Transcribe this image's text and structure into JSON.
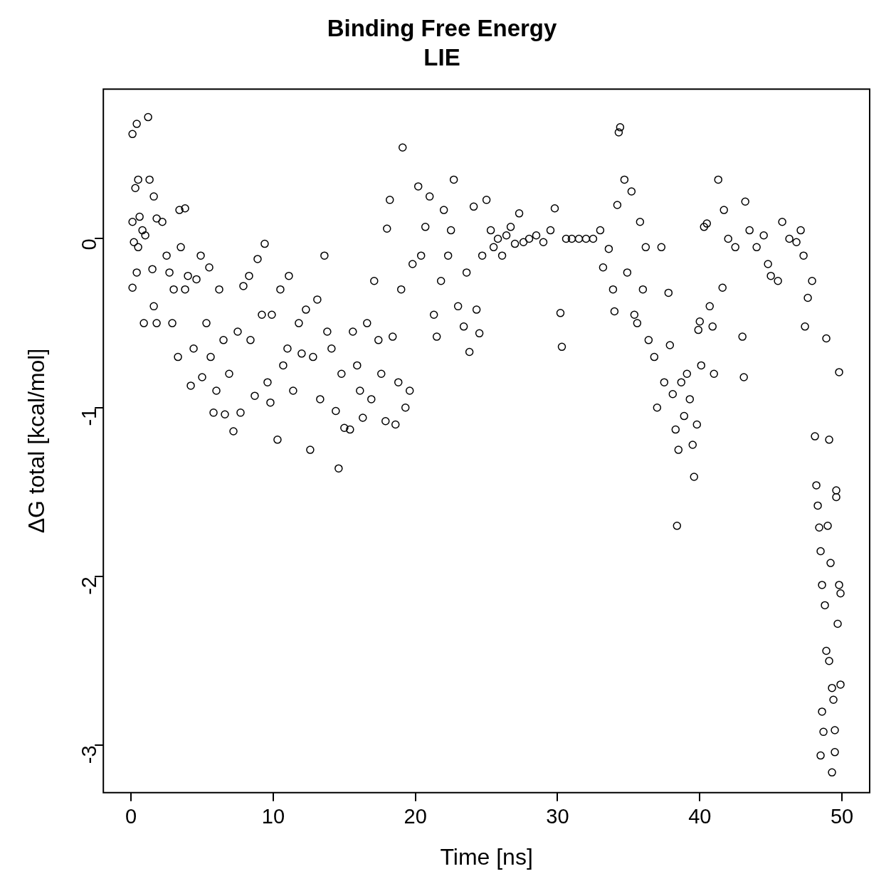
{
  "chart_data": {
    "type": "scatter",
    "title": "Binding Free Energy",
    "subtitle": "LIE",
    "xlabel": "Time [ns]",
    "ylabel": "ΔG total [kcal/mol]",
    "marker": "circle",
    "xlim": [
      -1.95,
      51.95
    ],
    "ylim": [
      -3.28,
      0.886
    ],
    "xticks": [
      0,
      10,
      20,
      30,
      40,
      50
    ],
    "yticks": [
      -3,
      -2,
      -1,
      0
    ],
    "x": [
      0.1,
      0.4,
      1.2,
      0.3,
      0.5,
      1.3,
      0.6,
      0.1,
      0.8,
      1.0,
      0.2,
      0.5,
      0.4,
      0.1,
      0.9,
      1.5,
      1.6,
      1.8,
      1.6,
      1.8,
      2.2,
      2.5,
      2.7,
      3.0,
      2.9,
      3.4,
      3.8,
      3.5,
      3.3,
      3.8,
      4.0,
      4.4,
      4.6,
      4.9,
      4.2,
      5.0,
      5.3,
      5.5,
      5.6,
      5.8,
      6.0,
      6.2,
      6.5,
      6.6,
      6.9,
      7.2,
      7.5,
      7.7,
      7.9,
      8.3,
      8.4,
      8.7,
      8.9,
      9.2,
      9.4,
      9.6,
      9.8,
      9.9,
      10.3,
      10.5,
      10.7,
      11.0,
      11.1,
      11.4,
      11.8,
      12.0,
      12.3,
      12.6,
      12.8,
      13.1,
      13.3,
      13.6,
      13.8,
      14.1,
      14.4,
      14.6,
      14.8,
      15.0,
      15.4,
      15.6,
      15.9,
      16.1,
      16.3,
      16.6,
      16.9,
      17.1,
      17.4,
      17.6,
      17.9,
      18.0,
      18.2,
      18.4,
      18.6,
      18.8,
      19.1,
      19.0,
      19.3,
      19.6,
      19.8,
      20.2,
      20.4,
      20.7,
      21.0,
      21.3,
      21.5,
      21.8,
      22.0,
      22.3,
      22.5,
      22.7,
      23.0,
      23.4,
      23.6,
      23.8,
      24.1,
      24.3,
      24.5,
      24.7,
      25.0,
      25.3,
      25.5,
      25.8,
      26.1,
      26.4,
      26.7,
      27.0,
      27.3,
      27.6,
      28.0,
      28.5,
      29.0,
      29.5,
      29.8,
      30.2,
      30.3,
      30.6,
      31.0,
      31.5,
      32.0,
      32.5,
      33.0,
      33.2,
      33.6,
      33.9,
      34.0,
      34.2,
      34.3,
      34.4,
      34.7,
      34.9,
      35.2,
      35.4,
      35.6,
      35.8,
      36.0,
      36.2,
      36.4,
      36.8,
      37.0,
      37.3,
      37.5,
      37.8,
      37.9,
      38.1,
      38.3,
      38.4,
      38.5,
      38.7,
      38.9,
      39.1,
      39.3,
      39.5,
      39.6,
      39.8,
      39.9,
      40.0,
      40.1,
      40.3,
      40.5,
      40.7,
      40.9,
      41.0,
      41.3,
      41.6,
      41.7,
      42.0,
      42.5,
      43.0,
      43.1,
      43.2,
      43.5,
      44.0,
      44.5,
      44.8,
      45.0,
      45.5,
      45.8,
      46.3,
      46.8,
      47.1,
      47.3,
      47.4,
      47.6,
      47.9,
      48.1,
      48.2,
      48.3,
      48.4,
      48.5,
      48.6,
      48.5,
      48.6,
      48.7,
      48.8,
      48.9,
      48.9,
      49.0,
      49.1,
      49.1,
      49.2,
      49.3,
      49.3,
      49.4,
      49.5,
      49.5,
      49.6,
      49.7,
      49.8,
      49.8,
      49.9,
      49.9,
      49.6
    ],
    "values": [
      0.62,
      0.68,
      0.72,
      0.3,
      0.35,
      0.35,
      0.13,
      0.1,
      0.05,
      0.02,
      -0.02,
      -0.05,
      -0.2,
      -0.29,
      -0.5,
      -0.18,
      0.25,
      0.12,
      -0.4,
      -0.5,
      0.1,
      -0.1,
      -0.2,
      -0.3,
      -0.5,
      0.17,
      0.18,
      -0.05,
      -0.7,
      -0.3,
      -0.22,
      -0.65,
      -0.24,
      -0.1,
      -0.87,
      -0.82,
      -0.5,
      -0.17,
      -0.7,
      -1.03,
      -0.9,
      -0.3,
      -0.6,
      -1.04,
      -0.8,
      -1.14,
      -0.55,
      -1.03,
      -0.28,
      -0.22,
      -0.6,
      -0.93,
      -0.12,
      -0.45,
      -0.03,
      -0.85,
      -0.97,
      -0.45,
      -1.19,
      -0.3,
      -0.75,
      -0.65,
      -0.22,
      -0.9,
      -0.5,
      -0.68,
      -0.42,
      -1.25,
      -0.7,
      -0.36,
      -0.95,
      -0.1,
      -0.55,
      -0.65,
      -1.02,
      -1.36,
      -0.8,
      -1.12,
      -1.13,
      -0.55,
      -0.75,
      -0.9,
      -1.06,
      -0.5,
      -0.95,
      -0.25,
      -0.6,
      -0.8,
      -1.08,
      0.06,
      0.23,
      -0.58,
      -1.1,
      -0.85,
      0.54,
      -0.3,
      -1.0,
      -0.9,
      -0.15,
      0.31,
      -0.1,
      0.07,
      0.25,
      -0.45,
      -0.58,
      -0.25,
      0.17,
      -0.1,
      0.05,
      0.35,
      -0.4,
      -0.52,
      -0.2,
      -0.67,
      0.19,
      -0.42,
      -0.56,
      -0.1,
      0.23,
      0.05,
      -0.05,
      0.0,
      -0.1,
      0.02,
      0.07,
      -0.03,
      0.15,
      -0.02,
      0.0,
      0.02,
      -0.02,
      0.05,
      0.18,
      -0.44,
      -0.64,
      0.0,
      0.0,
      0.0,
      0.0,
      0.0,
      0.05,
      -0.17,
      -0.06,
      -0.3,
      -0.43,
      0.2,
      0.63,
      0.66,
      0.35,
      -0.2,
      0.28,
      -0.45,
      -0.5,
      0.1,
      -0.3,
      -0.05,
      -0.6,
      -0.7,
      -1.0,
      -0.05,
      -0.85,
      -0.32,
      -0.63,
      -0.92,
      -1.13,
      -1.7,
      -1.25,
      -0.85,
      -1.05,
      -0.8,
      -0.95,
      -1.22,
      -1.41,
      -1.1,
      -0.54,
      -0.49,
      -0.75,
      0.07,
      0.09,
      -0.4,
      -0.52,
      -0.8,
      0.35,
      -0.29,
      0.17,
      0.0,
      -0.05,
      -0.58,
      -0.82,
      0.22,
      0.05,
      -0.05,
      0.02,
      -0.15,
      -0.22,
      -0.25,
      0.1,
      0.0,
      -0.02,
      0.05,
      -0.1,
      -0.52,
      -0.35,
      -0.25,
      -1.17,
      -1.46,
      -1.58,
      -1.71,
      -1.85,
      -2.05,
      -3.06,
      -2.8,
      -2.92,
      -2.17,
      -2.44,
      -0.59,
      -1.7,
      -2.5,
      -1.19,
      -1.92,
      -2.66,
      -3.16,
      -2.73,
      -2.91,
      -3.04,
      -1.49,
      -2.28,
      -2.05,
      -0.79,
      -2.1,
      -2.64,
      -1.53
    ]
  }
}
